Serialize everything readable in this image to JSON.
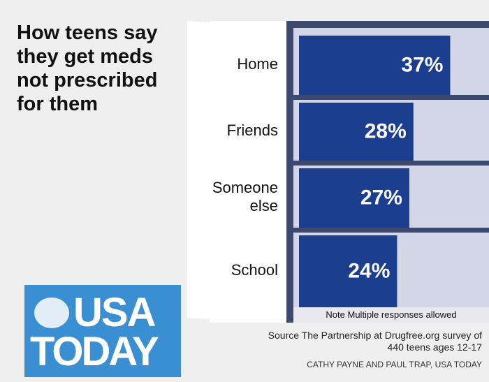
{
  "chart_data": {
    "type": "bar",
    "orientation": "horizontal",
    "title": "How teens say they get meds not prescribed for them",
    "categories": [
      "Home",
      "Friends",
      "Someone else",
      "School"
    ],
    "values": [
      37,
      28,
      27,
      24
    ],
    "value_labels": [
      "37%",
      "28%",
      "27%",
      "24%"
    ],
    "color": "#1b3f8e",
    "note": "Note Multiple responses allowed",
    "source": "Source The Partnership at Drugfree.org survey of 440 teens ages 12-17",
    "credit": "CATHY PAYNE AND PAUL TRAP, USA TODAY",
    "logo": [
      "USA",
      "TODAY"
    ]
  }
}
